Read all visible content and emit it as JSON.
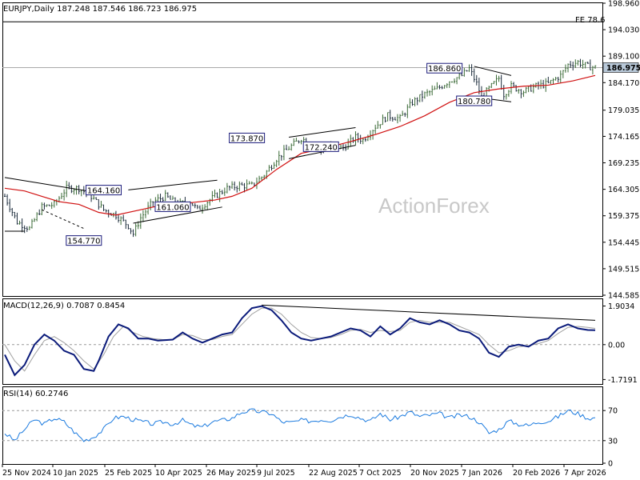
{
  "chart_data": [
    {
      "type": "candlestick",
      "title": "EURJPY,Daily  187.248 187.546 186.723 186.975",
      "last_price": "186.975",
      "watermark": "ActionForex",
      "ylim": [
        144.585,
        198.96
      ],
      "y_ticks": [
        "198.960",
        "194.030",
        "189.100",
        "184.170",
        "179.035",
        "174.165",
        "169.235",
        "164.305",
        "159.375",
        "154.445",
        "149.515",
        "144.585"
      ],
      "x_ticks": [
        "25 Nov 2024",
        "10 Jan 2025",
        "25 Feb 2025",
        "10 Apr 2025",
        "26 May 2025",
        "9 Jul 2025",
        "22 Aug 2025",
        "7 Oct 2025",
        "20 Nov 2025",
        "7 Jan 2026",
        "20 Feb 2026",
        "7 Apr 2026"
      ],
      "fe_level": {
        "label": "FE 78.6",
        "value": 195.5
      },
      "current_level": 186.975,
      "price_path": [
        [
          0,
          163
        ],
        [
          5,
          158.2
        ],
        [
          10,
          157
        ],
        [
          15,
          161
        ],
        [
          20,
          161.5
        ],
        [
          25,
          164.5
        ],
        [
          30,
          164.5
        ],
        [
          35,
          163
        ],
        [
          40,
          160.5
        ],
        [
          45,
          159.5
        ],
        [
          50,
          157.5
        ],
        [
          52,
          156
        ],
        [
          55,
          159
        ],
        [
          60,
          162
        ],
        [
          65,
          163
        ],
        [
          70,
          161.5
        ],
        [
          75,
          162
        ],
        [
          78,
          160.5
        ],
        [
          82,
          162
        ],
        [
          85,
          163
        ],
        [
          90,
          164.5
        ],
        [
          95,
          165
        ],
        [
          100,
          165
        ],
        [
          105,
          167
        ],
        [
          110,
          170
        ],
        [
          115,
          172
        ],
        [
          120,
          173.8
        ],
        [
          125,
          172.5
        ],
        [
          128,
          171.5
        ],
        [
          132,
          172.3
        ],
        [
          137,
          172
        ],
        [
          142,
          174
        ],
        [
          145,
          173.5
        ],
        [
          150,
          176
        ],
        [
          155,
          178
        ],
        [
          160,
          177.5
        ],
        [
          165,
          180.5
        ],
        [
          170,
          182
        ],
        [
          175,
          183
        ],
        [
          180,
          184.5
        ],
        [
          185,
          185.5
        ],
        [
          188,
          186.8
        ],
        [
          191,
          184
        ],
        [
          193,
          181.5
        ],
        [
          196,
          183
        ],
        [
          200,
          185
        ],
        [
          202,
          182
        ],
        [
          205,
          183.5
        ],
        [
          210,
          182.5
        ],
        [
          215,
          183.5
        ],
        [
          220,
          184
        ],
        [
          225,
          185.5
        ],
        [
          228,
          187.5
        ],
        [
          232,
          188
        ],
        [
          236,
          187.2
        ],
        [
          239,
          187
        ]
      ],
      "ma_path": [
        [
          0,
          164.5
        ],
        [
          8,
          164
        ],
        [
          15,
          163
        ],
        [
          22,
          162
        ],
        [
          30,
          161.5
        ],
        [
          38,
          160
        ],
        [
          45,
          159.5
        ],
        [
          55,
          160.5
        ],
        [
          65,
          161.5
        ],
        [
          75,
          161.8
        ],
        [
          85,
          162.3
        ],
        [
          92,
          163
        ],
        [
          100,
          164.5
        ],
        [
          110,
          168
        ],
        [
          120,
          171
        ],
        [
          130,
          172
        ],
        [
          140,
          173.2
        ],
        [
          150,
          174.5
        ],
        [
          160,
          176
        ],
        [
          170,
          178
        ],
        [
          180,
          180.5
        ],
        [
          190,
          182.3
        ],
        [
          200,
          183
        ],
        [
          210,
          183.5
        ],
        [
          220,
          183.7
        ],
        [
          230,
          184.5
        ],
        [
          239,
          185.5
        ]
      ],
      "callouts": [
        {
          "text": "164.160",
          "bar": 40,
          "value": 164.16
        },
        {
          "text": "154.770",
          "bar": 32,
          "value": 154.77
        },
        {
          "text": "161.060",
          "bar": 68,
          "value": 161.06
        },
        {
          "text": "173.870",
          "bar": 98,
          "value": 173.87
        },
        {
          "text": "172.240",
          "bar": 128,
          "value": 172.24
        },
        {
          "text": "186.860",
          "bar": 178,
          "value": 186.86
        },
        {
          "text": "180.780",
          "bar": 190,
          "value": 180.78
        }
      ],
      "trendlines": [
        {
          "from": [
            0,
            166.5
          ],
          "to": [
            40,
            163.5
          ]
        },
        {
          "from": [
            0,
            156.5
          ],
          "to": [
            8,
            156.5
          ]
        },
        {
          "from": [
            15,
            160.5
          ],
          "to": [
            32,
            157
          ],
          "dashed": true
        },
        {
          "from": [
            50,
            164.2
          ],
          "to": [
            86,
            166
          ]
        },
        {
          "from": [
            52,
            158
          ],
          "to": [
            88,
            161
          ]
        },
        {
          "from": [
            115,
            174
          ],
          "to": [
            142,
            175.8
          ]
        },
        {
          "from": [
            115,
            170
          ],
          "to": [
            142,
            172.5
          ]
        },
        {
          "from": [
            190,
            187.2
          ],
          "to": [
            205,
            185.5
          ]
        },
        {
          "from": [
            190,
            181.5
          ],
          "to": [
            205,
            180.6
          ]
        }
      ]
    },
    {
      "type": "line",
      "title": "MACD(12,26,9) 0.7087 0.8454",
      "ylim": [
        -1.9,
        2.2
      ],
      "y_ticks": [
        "1.9034",
        "0.00",
        "-1.7191"
      ],
      "macd_path": [
        [
          0,
          -0.5
        ],
        [
          4,
          -1.5
        ],
        [
          8,
          -1
        ],
        [
          12,
          0
        ],
        [
          16,
          0.5
        ],
        [
          20,
          0.2
        ],
        [
          24,
          -0.3
        ],
        [
          28,
          -0.5
        ],
        [
          32,
          -1.2
        ],
        [
          36,
          -1.3
        ],
        [
          38,
          -0.8
        ],
        [
          42,
          0.4
        ],
        [
          46,
          1.0
        ],
        [
          50,
          0.8
        ],
        [
          54,
          0.3
        ],
        [
          58,
          0.3
        ],
        [
          62,
          0.2
        ],
        [
          68,
          0.25
        ],
        [
          72,
          0.6
        ],
        [
          76,
          0.3
        ],
        [
          80,
          0.1
        ],
        [
          84,
          0.3
        ],
        [
          88,
          0.5
        ],
        [
          92,
          0.6
        ],
        [
          96,
          1.3
        ],
        [
          100,
          1.8
        ],
        [
          104,
          1.9
        ],
        [
          108,
          1.7
        ],
        [
          112,
          1.2
        ],
        [
          116,
          0.6
        ],
        [
          120,
          0.3
        ],
        [
          124,
          0.2
        ],
        [
          128,
          0.3
        ],
        [
          132,
          0.4
        ],
        [
          136,
          0.6
        ],
        [
          140,
          0.8
        ],
        [
          144,
          0.7
        ],
        [
          148,
          0.4
        ],
        [
          152,
          0.9
        ],
        [
          156,
          0.5
        ],
        [
          160,
          0.8
        ],
        [
          164,
          1.3
        ],
        [
          168,
          1.1
        ],
        [
          172,
          1.0
        ],
        [
          176,
          1.2
        ],
        [
          180,
          1.0
        ],
        [
          184,
          0.7
        ],
        [
          188,
          0.6
        ],
        [
          192,
          0.3
        ],
        [
          196,
          -0.4
        ],
        [
          200,
          -0.6
        ],
        [
          204,
          -0.1
        ],
        [
          208,
          0.0
        ],
        [
          212,
          -0.1
        ],
        [
          216,
          0.2
        ],
        [
          220,
          0.3
        ],
        [
          224,
          0.8
        ],
        [
          228,
          1.0
        ],
        [
          232,
          0.8
        ],
        [
          236,
          0.72
        ],
        [
          239,
          0.71
        ]
      ],
      "signal_path": [
        [
          0,
          0
        ],
        [
          4,
          -0.8
        ],
        [
          8,
          -1.3
        ],
        [
          12,
          -0.5
        ],
        [
          16,
          0.2
        ],
        [
          20,
          0.4
        ],
        [
          24,
          0.1
        ],
        [
          28,
          -0.3
        ],
        [
          32,
          -0.8
        ],
        [
          36,
          -1.2
        ],
        [
          40,
          -0.5
        ],
        [
          44,
          0.4
        ],
        [
          48,
          0.9
        ],
        [
          52,
          0.6
        ],
        [
          56,
          0.4
        ],
        [
          60,
          0.3
        ],
        [
          64,
          0.25
        ],
        [
          68,
          0.25
        ],
        [
          72,
          0.5
        ],
        [
          76,
          0.45
        ],
        [
          80,
          0.25
        ],
        [
          84,
          0.25
        ],
        [
          88,
          0.4
        ],
        [
          92,
          0.5
        ],
        [
          96,
          1.0
        ],
        [
          100,
          1.5
        ],
        [
          104,
          1.8
        ],
        [
          108,
          1.8
        ],
        [
          112,
          1.5
        ],
        [
          116,
          1.0
        ],
        [
          120,
          0.6
        ],
        [
          124,
          0.35
        ],
        [
          128,
          0.3
        ],
        [
          132,
          0.35
        ],
        [
          136,
          0.5
        ],
        [
          140,
          0.7
        ],
        [
          144,
          0.75
        ],
        [
          148,
          0.6
        ],
        [
          152,
          0.7
        ],
        [
          156,
          0.65
        ],
        [
          160,
          0.7
        ],
        [
          164,
          1.1
        ],
        [
          168,
          1.2
        ],
        [
          172,
          1.1
        ],
        [
          176,
          1.1
        ],
        [
          180,
          1.1
        ],
        [
          184,
          0.9
        ],
        [
          188,
          0.7
        ],
        [
          192,
          0.5
        ],
        [
          196,
          0.0
        ],
        [
          200,
          -0.4
        ],
        [
          204,
          -0.3
        ],
        [
          208,
          -0.1
        ],
        [
          212,
          -0.05
        ],
        [
          216,
          0.05
        ],
        [
          220,
          0.2
        ],
        [
          224,
          0.55
        ],
        [
          228,
          0.85
        ],
        [
          232,
          0.9
        ],
        [
          236,
          0.85
        ],
        [
          239,
          0.8
        ]
      ],
      "trendline": {
        "from": [
          104,
          1.95
        ],
        "to": [
          239,
          1.2
        ]
      }
    },
    {
      "type": "line",
      "title": "RSI(14) 60.2746",
      "ylim": [
        0,
        100
      ],
      "y_ticks": [
        "70",
        "30",
        "0"
      ],
      "levels": [
        70,
        30
      ],
      "rsi_path": [
        [
          0,
          40
        ],
        [
          4,
          30
        ],
        [
          8,
          45
        ],
        [
          12,
          58
        ],
        [
          16,
          52
        ],
        [
          20,
          60
        ],
        [
          24,
          55
        ],
        [
          28,
          42
        ],
        [
          32,
          30
        ],
        [
          36,
          35
        ],
        [
          40,
          45
        ],
        [
          44,
          60
        ],
        [
          48,
          62
        ],
        [
          52,
          58
        ],
        [
          56,
          55
        ],
        [
          60,
          52
        ],
        [
          64,
          55
        ],
        [
          68,
          52
        ],
        [
          72,
          57
        ],
        [
          76,
          50
        ],
        [
          80,
          48
        ],
        [
          84,
          55
        ],
        [
          88,
          57
        ],
        [
          92,
          60
        ],
        [
          96,
          68
        ],
        [
          100,
          70
        ],
        [
          104,
          68
        ],
        [
          108,
          66
        ],
        [
          112,
          55
        ],
        [
          116,
          54
        ],
        [
          120,
          57
        ],
        [
          124,
          56
        ],
        [
          128,
          58
        ],
        [
          132,
          57
        ],
        [
          136,
          62
        ],
        [
          140,
          65
        ],
        [
          144,
          60
        ],
        [
          148,
          56
        ],
        [
          152,
          66
        ],
        [
          156,
          58
        ],
        [
          160,
          62
        ],
        [
          164,
          68
        ],
        [
          168,
          62
        ],
        [
          172,
          64
        ],
        [
          176,
          66
        ],
        [
          180,
          60
        ],
        [
          184,
          64
        ],
        [
          188,
          62
        ],
        [
          192,
          55
        ],
        [
          196,
          40
        ],
        [
          200,
          45
        ],
        [
          204,
          56
        ],
        [
          208,
          52
        ],
        [
          212,
          50
        ],
        [
          216,
          55
        ],
        [
          220,
          56
        ],
        [
          224,
          62
        ],
        [
          228,
          70
        ],
        [
          232,
          66
        ],
        [
          236,
          60
        ],
        [
          239,
          60
        ]
      ]
    }
  ],
  "colors": {
    "bull": "#3a6a36",
    "bear": "#1a2a3a",
    "ma": "#d01010",
    "macd": "#0a1a7a",
    "signal": "#a0a0a0",
    "rsi": "#1a7adf",
    "last_box": "#b8c8d8"
  }
}
